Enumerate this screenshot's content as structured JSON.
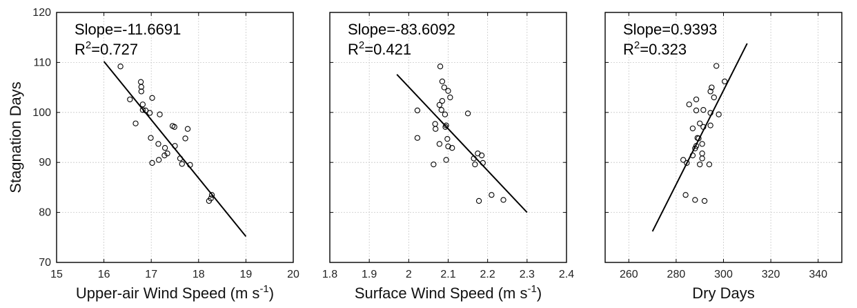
{
  "chart_data": [
    {
      "type": "scatter",
      "xlabel": "Upper-air Wind Speed (m s",
      "xlabel_sup": "-1",
      "xlabel_close": ")",
      "ylabel": "Stagnation Days",
      "xlim": [
        15,
        20
      ],
      "ylim": [
        70,
        120
      ],
      "xticks": [
        "15",
        "16",
        "17",
        "18",
        "19",
        "20"
      ],
      "yticks": [
        "70",
        "80",
        "90",
        "100",
        "110",
        "120"
      ],
      "grid": true,
      "annotation": {
        "slope_text": "Slope=-11.6691",
        "r2_prefix": "R",
        "r2_sup": "2",
        "r2_value": "=0.727"
      },
      "fit_line": {
        "x": [
          16.0,
          19.0
        ],
        "y": [
          110.2,
          75.2
        ]
      },
      "points": [
        {
          "x": 16.35,
          "y": 109.2
        },
        {
          "x": 16.78,
          "y": 106.1
        },
        {
          "x": 16.79,
          "y": 105.1
        },
        {
          "x": 16.79,
          "y": 104.2
        },
        {
          "x": 17.02,
          "y": 102.9
        },
        {
          "x": 16.55,
          "y": 102.6
        },
        {
          "x": 16.82,
          "y": 101.6
        },
        {
          "x": 16.82,
          "y": 100.5
        },
        {
          "x": 16.88,
          "y": 100.4
        },
        {
          "x": 16.97,
          "y": 99.9
        },
        {
          "x": 17.18,
          "y": 99.6
        },
        {
          "x": 16.67,
          "y": 97.8
        },
        {
          "x": 17.45,
          "y": 97.3
        },
        {
          "x": 17.49,
          "y": 97.1
        },
        {
          "x": 17.77,
          "y": 96.7
        },
        {
          "x": 16.99,
          "y": 94.9
        },
        {
          "x": 17.72,
          "y": 94.8
        },
        {
          "x": 17.15,
          "y": 93.7
        },
        {
          "x": 17.5,
          "y": 93.3
        },
        {
          "x": 17.29,
          "y": 92.9
        },
        {
          "x": 17.34,
          "y": 91.8
        },
        {
          "x": 17.28,
          "y": 91.4
        },
        {
          "x": 17.61,
          "y": 90.8
        },
        {
          "x": 17.16,
          "y": 90.5
        },
        {
          "x": 17.02,
          "y": 89.9
        },
        {
          "x": 17.65,
          "y": 89.7
        },
        {
          "x": 17.82,
          "y": 89.5
        },
        {
          "x": 18.28,
          "y": 83.5
        },
        {
          "x": 18.26,
          "y": 82.8
        },
        {
          "x": 18.22,
          "y": 82.3
        }
      ]
    },
    {
      "type": "scatter",
      "xlabel": "Surface Wind Speed (m s",
      "xlabel_sup": "-1",
      "xlabel_close": ")",
      "ylabel": "",
      "xlim": [
        1.8,
        2.4
      ],
      "ylim": [
        70,
        120
      ],
      "xticks": [
        "1.8",
        "1.9",
        "2",
        "2.1",
        "2.2",
        "2.3",
        "2.4"
      ],
      "yticks": [],
      "grid": true,
      "annotation": {
        "slope_text": "Slope=-83.6092",
        "r2_prefix": "R",
        "r2_sup": "2",
        "r2_value": "=0.421"
      },
      "fit_line": {
        "x": [
          1.97,
          2.3
        ],
        "y": [
          107.6,
          80.0
        ]
      },
      "points": [
        {
          "x": 2.08,
          "y": 109.2
        },
        {
          "x": 2.085,
          "y": 106.2
        },
        {
          "x": 2.09,
          "y": 105.0
        },
        {
          "x": 2.1,
          "y": 104.3
        },
        {
          "x": 2.105,
          "y": 103.0
        },
        {
          "x": 2.085,
          "y": 102.3
        },
        {
          "x": 2.078,
          "y": 101.5
        },
        {
          "x": 2.022,
          "y": 100.4
        },
        {
          "x": 2.083,
          "y": 100.5
        },
        {
          "x": 2.15,
          "y": 99.8
        },
        {
          "x": 2.092,
          "y": 99.6
        },
        {
          "x": 2.067,
          "y": 97.7
        },
        {
          "x": 2.095,
          "y": 97.4
        },
        {
          "x": 2.093,
          "y": 97.1
        },
        {
          "x": 2.068,
          "y": 96.7
        },
        {
          "x": 2.022,
          "y": 94.9
        },
        {
          "x": 2.098,
          "y": 94.7
        },
        {
          "x": 2.078,
          "y": 93.7
        },
        {
          "x": 2.1,
          "y": 93.2
        },
        {
          "x": 2.11,
          "y": 92.9
        },
        {
          "x": 2.175,
          "y": 91.8
        },
        {
          "x": 2.185,
          "y": 91.4
        },
        {
          "x": 2.165,
          "y": 90.8
        },
        {
          "x": 2.095,
          "y": 90.5
        },
        {
          "x": 2.188,
          "y": 89.9
        },
        {
          "x": 2.063,
          "y": 89.6
        },
        {
          "x": 2.168,
          "y": 89.6
        },
        {
          "x": 2.21,
          "y": 83.5
        },
        {
          "x": 2.24,
          "y": 82.5
        },
        {
          "x": 2.178,
          "y": 82.3
        }
      ]
    },
    {
      "type": "scatter",
      "xlabel": "Dry Days",
      "xlabel_sup": "",
      "xlabel_close": "",
      "ylabel": "",
      "xlim": [
        250,
        350
      ],
      "ylim": [
        70,
        120
      ],
      "xticks": [
        "260",
        "280",
        "300",
        "320",
        "340"
      ],
      "xtick_values": [
        260,
        280,
        300,
        320,
        340
      ],
      "yticks": [],
      "grid": true,
      "annotation": {
        "slope_text": "Slope=0.9393",
        "r2_prefix": "R",
        "r2_sup": "2",
        "r2_value": "=0.323"
      },
      "fit_line": {
        "x": [
          270,
          310
        ],
        "y": [
          76.2,
          113.8
        ]
      },
      "points": [
        {
          "x": 297.0,
          "y": 109.3
        },
        {
          "x": 300.5,
          "y": 106.2
        },
        {
          "x": 295.0,
          "y": 105.0
        },
        {
          "x": 294.5,
          "y": 104.2
        },
        {
          "x": 296.0,
          "y": 103.0
        },
        {
          "x": 288.5,
          "y": 102.6
        },
        {
          "x": 285.5,
          "y": 101.6
        },
        {
          "x": 291.5,
          "y": 100.5
        },
        {
          "x": 288.5,
          "y": 100.4
        },
        {
          "x": 294.5,
          "y": 99.9
        },
        {
          "x": 298.0,
          "y": 99.6
        },
        {
          "x": 290.0,
          "y": 97.8
        },
        {
          "x": 291.5,
          "y": 97.1
        },
        {
          "x": 294.5,
          "y": 97.4
        },
        {
          "x": 287.0,
          "y": 96.8
        },
        {
          "x": 289.0,
          "y": 94.9
        },
        {
          "x": 289.5,
          "y": 94.8
        },
        {
          "x": 291.0,
          "y": 93.7
        },
        {
          "x": 288.5,
          "y": 93.3
        },
        {
          "x": 288.0,
          "y": 92.8
        },
        {
          "x": 291.0,
          "y": 91.8
        },
        {
          "x": 287.0,
          "y": 91.4
        },
        {
          "x": 291.0,
          "y": 90.8
        },
        {
          "x": 283.0,
          "y": 90.5
        },
        {
          "x": 284.5,
          "y": 89.9
        },
        {
          "x": 290.0,
          "y": 89.6
        },
        {
          "x": 294.0,
          "y": 89.6
        },
        {
          "x": 284.0,
          "y": 83.5
        },
        {
          "x": 288.0,
          "y": 82.5
        },
        {
          "x": 292.0,
          "y": 82.3
        }
      ]
    }
  ]
}
